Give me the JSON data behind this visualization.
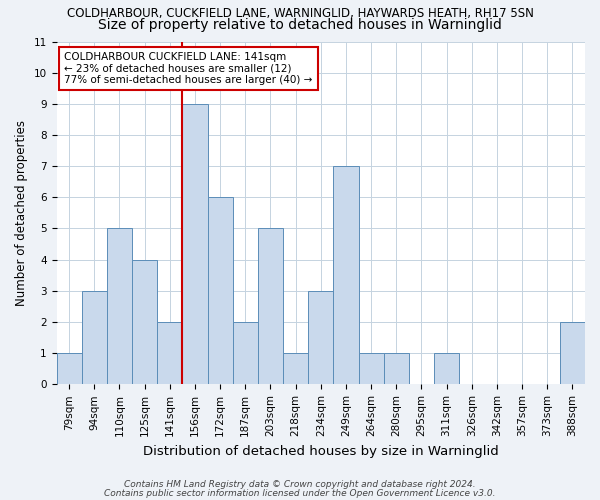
{
  "title": "COLDHARBOUR, CUCKFIELD LANE, WARNINGLID, HAYWARDS HEATH, RH17 5SN",
  "subtitle": "Size of property relative to detached houses in Warninglid",
  "xlabel": "Distribution of detached houses by size in Warninglid",
  "ylabel": "Number of detached properties",
  "categories": [
    "79sqm",
    "94sqm",
    "110sqm",
    "125sqm",
    "141sqm",
    "156sqm",
    "172sqm",
    "187sqm",
    "203sqm",
    "218sqm",
    "234sqm",
    "249sqm",
    "264sqm",
    "280sqm",
    "295sqm",
    "311sqm",
    "326sqm",
    "342sqm",
    "357sqm",
    "373sqm",
    "388sqm"
  ],
  "values": [
    1,
    3,
    5,
    4,
    2,
    9,
    6,
    2,
    5,
    1,
    3,
    7,
    1,
    1,
    0,
    1,
    0,
    0,
    0,
    0,
    2
  ],
  "bar_color": "#c9d9ec",
  "bar_edge_color": "#5b8db8",
  "highlight_index": 4,
  "highlight_line_color": "#cc0000",
  "annotation_text": "COLDHARBOUR CUCKFIELD LANE: 141sqm\n← 23% of detached houses are smaller (12)\n77% of semi-detached houses are larger (40) →",
  "annotation_box_color": "#ffffff",
  "annotation_box_edge_color": "#cc0000",
  "ylim": [
    0,
    11
  ],
  "yticks": [
    0,
    1,
    2,
    3,
    4,
    5,
    6,
    7,
    8,
    9,
    10,
    11
  ],
  "footer1": "Contains HM Land Registry data © Crown copyright and database right 2024.",
  "footer2": "Contains public sector information licensed under the Open Government Licence v3.0.",
  "background_color": "#eef2f7",
  "plot_background_color": "#ffffff",
  "grid_color": "#c5d3e0",
  "title_fontsize": 8.5,
  "subtitle_fontsize": 10,
  "xlabel_fontsize": 9.5,
  "ylabel_fontsize": 8.5,
  "tick_fontsize": 7.5,
  "annotation_fontsize": 7.5,
  "footer_fontsize": 6.5
}
